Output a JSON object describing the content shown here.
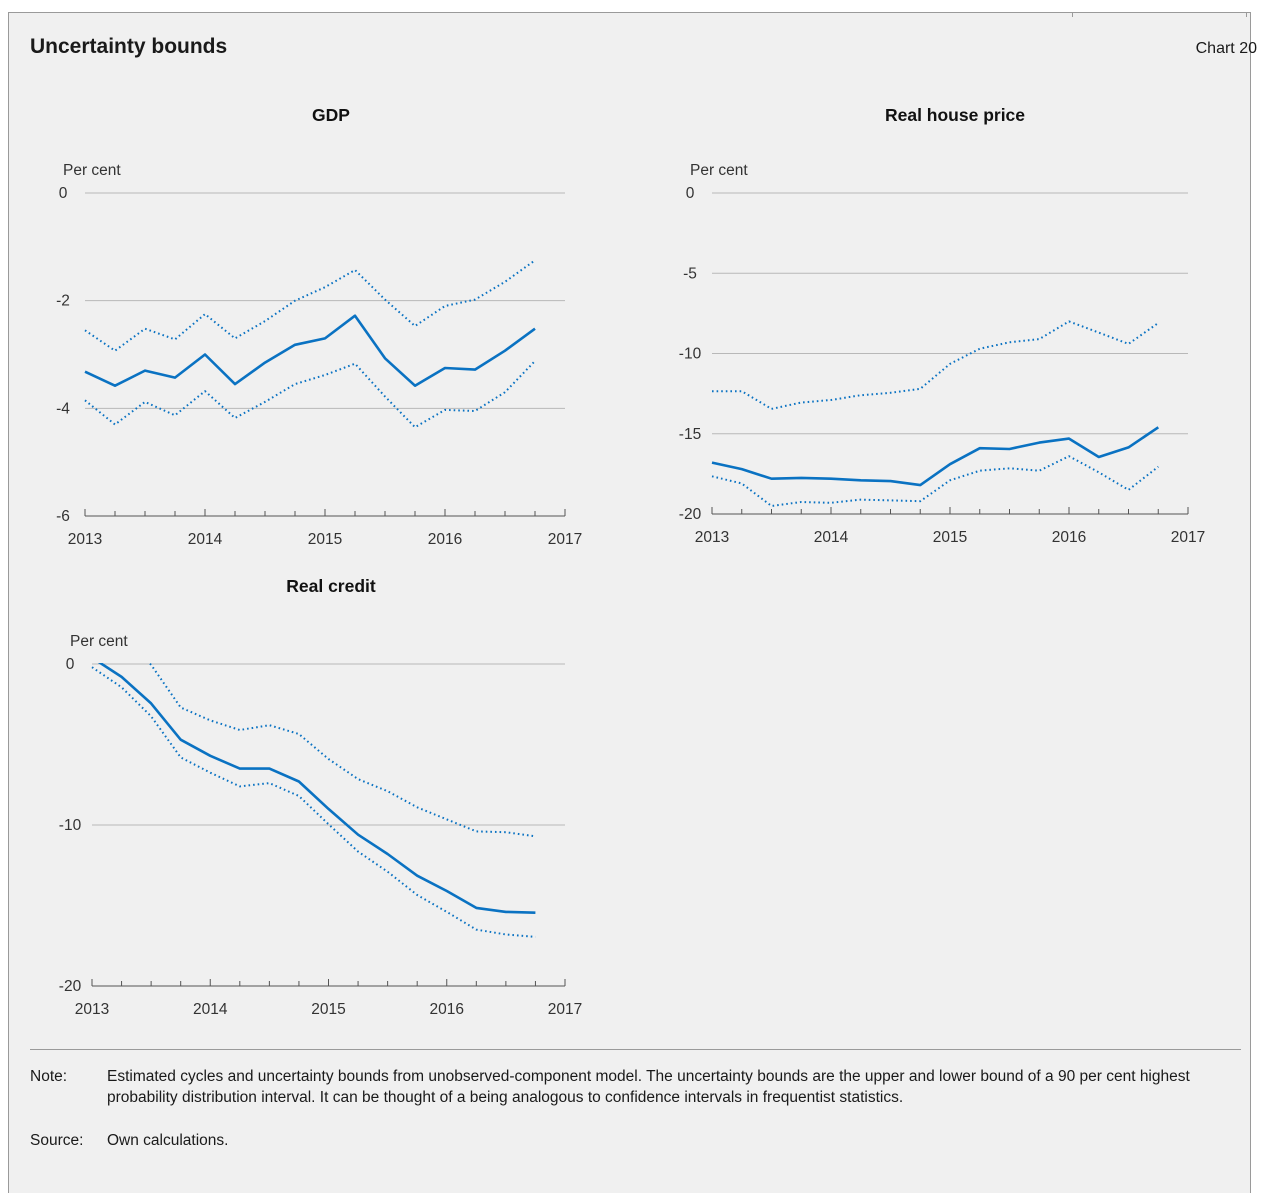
{
  "header": {
    "title": "Uncertainty bounds",
    "chart_number": "Chart 20"
  },
  "footnote": {
    "note_label": "Note:",
    "note_text": "Estimated cycles and uncertainty bounds from unobserved-component model. The uncertainty bounds are the upper and lower bound of a 90 per cent highest probability distribution interval. It can be thought of a being analogous to confidence intervals in frequentist statistics.",
    "source_label": "Source:",
    "source_text": "Own calculations."
  },
  "colors": {
    "series": "#0a72c2",
    "grid": "#b8b8b8",
    "axis": "#555555",
    "background": "#f0f0f0"
  },
  "chart_data": [
    {
      "type": "line",
      "title": "GDP",
      "ylabel": "Per cent",
      "ylim": [
        -6,
        0
      ],
      "yticks": [
        0,
        -2,
        -4,
        -6
      ],
      "xlim": [
        2013,
        2017
      ],
      "xticks": [
        2013,
        2014,
        2015,
        2016,
        2017
      ],
      "x": [
        2013.0,
        2013.25,
        2013.5,
        2013.75,
        2014.0,
        2014.25,
        2014.5,
        2014.75,
        2015.0,
        2015.25,
        2015.5,
        2015.75,
        2016.0,
        2016.25,
        2016.5,
        2016.75
      ],
      "grid": true,
      "series": [
        {
          "style": "solid",
          "values": [
            -3.32,
            -3.58,
            -3.3,
            -3.43,
            -3.0,
            -3.55,
            -3.15,
            -2.82,
            -2.7,
            -2.28,
            -3.07,
            -3.58,
            -3.25,
            -3.28,
            -2.93,
            -2.52
          ]
        },
        {
          "style": "dotted",
          "values": [
            -2.55,
            -2.93,
            -2.52,
            -2.72,
            -2.25,
            -2.7,
            -2.38,
            -2.0,
            -1.75,
            -1.43,
            -1.98,
            -2.47,
            -2.1,
            -1.98,
            -1.65,
            -1.25
          ]
        },
        {
          "style": "dotted",
          "values": [
            -3.85,
            -4.3,
            -3.88,
            -4.13,
            -3.68,
            -4.18,
            -3.88,
            -3.55,
            -3.38,
            -3.17,
            -3.78,
            -4.35,
            -4.03,
            -4.05,
            -3.7,
            -3.12
          ]
        }
      ]
    },
    {
      "type": "line",
      "title": "Real house price",
      "ylabel": "Per cent",
      "ylim": [
        -20,
        0
      ],
      "yticks": [
        0,
        -5,
        -10,
        -15,
        -20
      ],
      "xlim": [
        2013,
        2017
      ],
      "xticks": [
        2013,
        2014,
        2015,
        2016,
        2017
      ],
      "x": [
        2013.0,
        2013.25,
        2013.5,
        2013.75,
        2014.0,
        2014.25,
        2014.5,
        2014.75,
        2015.0,
        2015.25,
        2015.5,
        2015.75,
        2016.0,
        2016.25,
        2016.5,
        2016.75
      ],
      "grid": true,
      "series": [
        {
          "style": "solid",
          "values": [
            -16.8,
            -17.2,
            -17.8,
            -17.75,
            -17.8,
            -17.9,
            -17.95,
            -18.2,
            -16.9,
            -15.9,
            -15.95,
            -15.55,
            -15.3,
            -16.45,
            -15.85,
            -14.6
          ]
        },
        {
          "style": "dotted",
          "values": [
            -12.35,
            -12.35,
            -13.45,
            -13.05,
            -12.9,
            -12.6,
            -12.45,
            -12.2,
            -10.65,
            -9.7,
            -9.3,
            -9.1,
            -8.0,
            -8.7,
            -9.4,
            -8.1
          ]
        },
        {
          "style": "dotted",
          "values": [
            -17.65,
            -18.1,
            -19.5,
            -19.25,
            -19.3,
            -19.1,
            -19.15,
            -19.2,
            -17.9,
            -17.3,
            -17.15,
            -17.3,
            -16.4,
            -17.4,
            -18.5,
            -17.05
          ]
        }
      ]
    },
    {
      "type": "line",
      "title": "Real credit",
      "ylabel": "Per cent",
      "ylim": [
        -20,
        0
      ],
      "yticks": [
        0,
        -10,
        -20
      ],
      "xlim": [
        2013,
        2017
      ],
      "xticks": [
        2013,
        2014,
        2015,
        2016,
        2017
      ],
      "x": [
        2013.0,
        2013.25,
        2013.5,
        2013.75,
        2014.0,
        2014.25,
        2014.5,
        2014.75,
        2015.0,
        2015.25,
        2015.5,
        2015.75,
        2016.0,
        2016.25,
        2016.5,
        2016.75
      ],
      "grid": true,
      "series": [
        {
          "style": "solid",
          "values": [
            0.4,
            -0.8,
            -2.45,
            -4.7,
            -5.7,
            -6.5,
            -6.5,
            -7.3,
            -9.0,
            -10.6,
            -11.8,
            -13.15,
            -14.1,
            -15.15,
            -15.4,
            -15.45
          ]
        },
        {
          "style": "dotted",
          "values": [
            1.9,
            1.7,
            -0.05,
            -2.7,
            -3.5,
            -4.1,
            -3.8,
            -4.35,
            -5.9,
            -7.15,
            -7.9,
            -8.9,
            -9.65,
            -10.4,
            -10.45,
            -10.7
          ]
        },
        {
          "style": "dotted",
          "values": [
            -0.2,
            -1.45,
            -3.25,
            -5.8,
            -6.75,
            -7.6,
            -7.4,
            -8.2,
            -9.95,
            -11.65,
            -12.9,
            -14.35,
            -15.4,
            -16.5,
            -16.8,
            -16.95
          ]
        }
      ]
    }
  ]
}
